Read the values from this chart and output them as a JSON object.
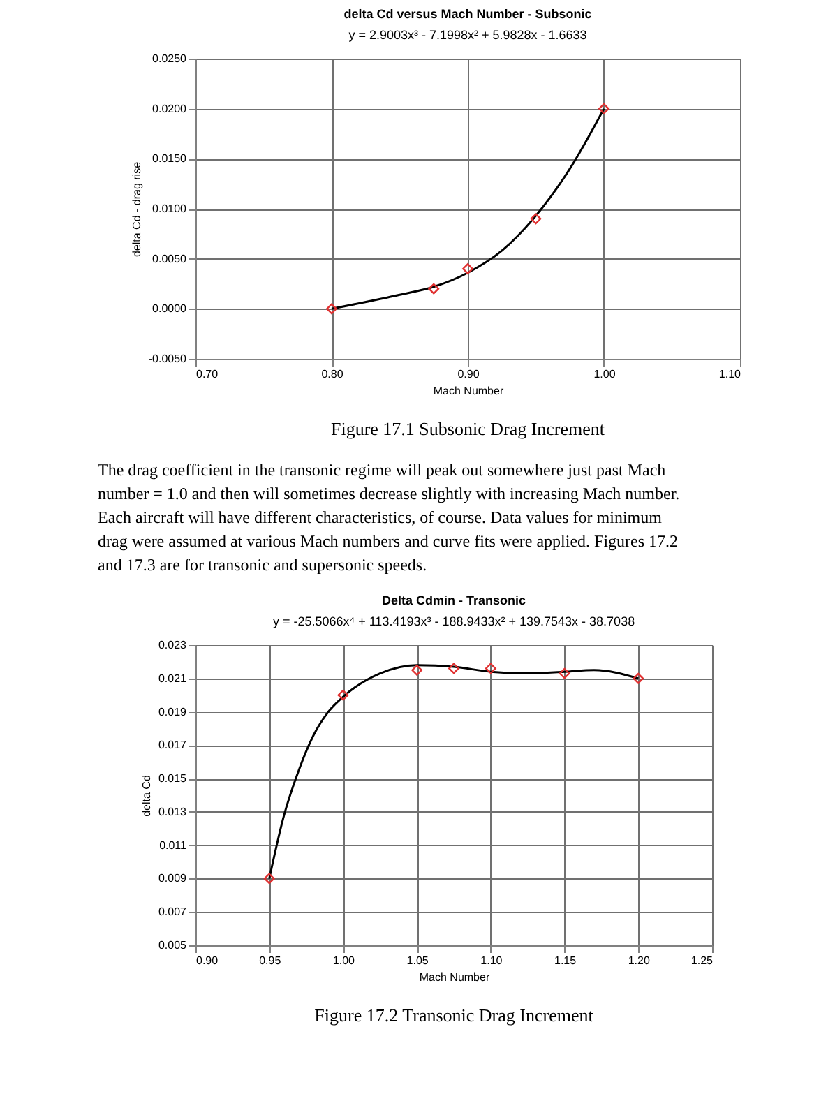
{
  "chart_data": [
    {
      "type": "scatter",
      "title": "delta Cd versus Mach Number - Subsonic",
      "subtitle": "y = 2.9003x³ - 7.1998x² + 5.9828x - 1.6633",
      "xlabel": "Mach Number",
      "ylabel": "delta Cd - drag rise",
      "series": [
        {
          "type": "line",
          "color": "#000000",
          "marker": "none",
          "line_style": "solid",
          "x": [
            0.8,
            0.85,
            0.875,
            0.9,
            0.925,
            0.95,
            0.975,
            1.0
          ],
          "values": [
            0.0,
            0.0014,
            0.0022,
            0.0036,
            0.0058,
            0.0093,
            0.014,
            0.02
          ]
        },
        {
          "type": "scatter",
          "color": "#e03030",
          "marker": "diamond",
          "x": [
            0.8,
            0.875,
            0.9,
            0.95,
            1.0
          ],
          "values": [
            0.0,
            0.002,
            0.004,
            0.009,
            0.02
          ]
        }
      ],
      "xlim": [
        0.7,
        1.1
      ],
      "ylim": [
        -0.005,
        0.025
      ],
      "xticks": [
        {
          "value": 0.7,
          "label": "0.70"
        },
        {
          "value": 0.8,
          "label": "0.80"
        },
        {
          "value": 0.9,
          "label": "0.90"
        },
        {
          "value": 1.0,
          "label": "1.00"
        },
        {
          "value": 1.1,
          "label": "1.10"
        }
      ],
      "yticks": [
        {
          "value": -0.005,
          "label": "-0.0050"
        },
        {
          "value": 0,
          "label": "0.0000"
        },
        {
          "value": 0.005,
          "label": "0.0050"
        },
        {
          "value": 0.01,
          "label": "0.0100"
        },
        {
          "value": 0.015,
          "label": "0.0150"
        },
        {
          "value": 0.02,
          "label": "0.0200"
        },
        {
          "value": 0.025,
          "label": "0.0250"
        }
      ],
      "grid": true,
      "annotations": [
        "Figure 17.1  Subsonic Drag Increment",
        "The drag coefficient in the transonic regime will peak out somewhere just past Mach number = 1.0 and then will sometimes decrease slightly with increasing Mach number. Each aircraft will have different characteristics, of course. Data values for minimum drag were assumed at various Mach numbers and curve fits were applied. Figures 17.2 and 17.3 are for transonic and supersonic speeds."
      ]
    },
    {
      "type": "scatter",
      "title": "Delta Cdmin - Transonic",
      "subtitle": "y = -25.5066x⁴ + 113.4193x³ - 188.9433x² + 139.7543x - 38.7038",
      "xlabel": "Mach Number",
      "ylabel": "delta Cd",
      "series": [
        {
          "type": "line",
          "color": "#000000",
          "marker": "none",
          "line_style": "solid",
          "x": [
            0.95,
            0.96,
            0.97,
            0.98,
            0.99,
            1.0,
            1.025,
            1.05,
            1.075,
            1.1,
            1.125,
            1.15,
            1.17,
            1.2
          ],
          "values": [
            0.009,
            0.0128,
            0.0155,
            0.0176,
            0.019,
            0.0199,
            0.0213,
            0.0218,
            0.0217,
            0.0214,
            0.0213,
            0.0214,
            0.0215,
            0.021
          ]
        },
        {
          "type": "scatter",
          "color": "#e03030",
          "marker": "diamond",
          "x": [
            0.95,
            1.0,
            1.05,
            1.075,
            1.1,
            1.15,
            1.2
          ],
          "values": [
            0.009,
            0.02,
            0.0215,
            0.0216,
            0.0216,
            0.0213,
            0.021
          ]
        }
      ],
      "xlim": [
        0.9,
        1.25
      ],
      "ylim": [
        0.005,
        0.023
      ],
      "xticks": [
        {
          "value": 0.9,
          "label": "0.90"
        },
        {
          "value": 0.95,
          "label": "0.95"
        },
        {
          "value": 1.0,
          "label": "1.00"
        },
        {
          "value": 1.05,
          "label": "1.05"
        },
        {
          "value": 1.1,
          "label": "1.10"
        },
        {
          "value": 1.15,
          "label": "1.15"
        },
        {
          "value": 1.2,
          "label": "1.20"
        },
        {
          "value": 1.25,
          "label": "1.25"
        }
      ],
      "yticks": [
        0.005,
        0.007,
        0.009,
        0.011,
        0.013,
        0.015,
        0.017,
        0.019,
        0.021,
        0.023
      ],
      "grid": true,
      "annotations": [
        "Figure 17.2  Transonic Drag Increment"
      ]
    }
  ]
}
